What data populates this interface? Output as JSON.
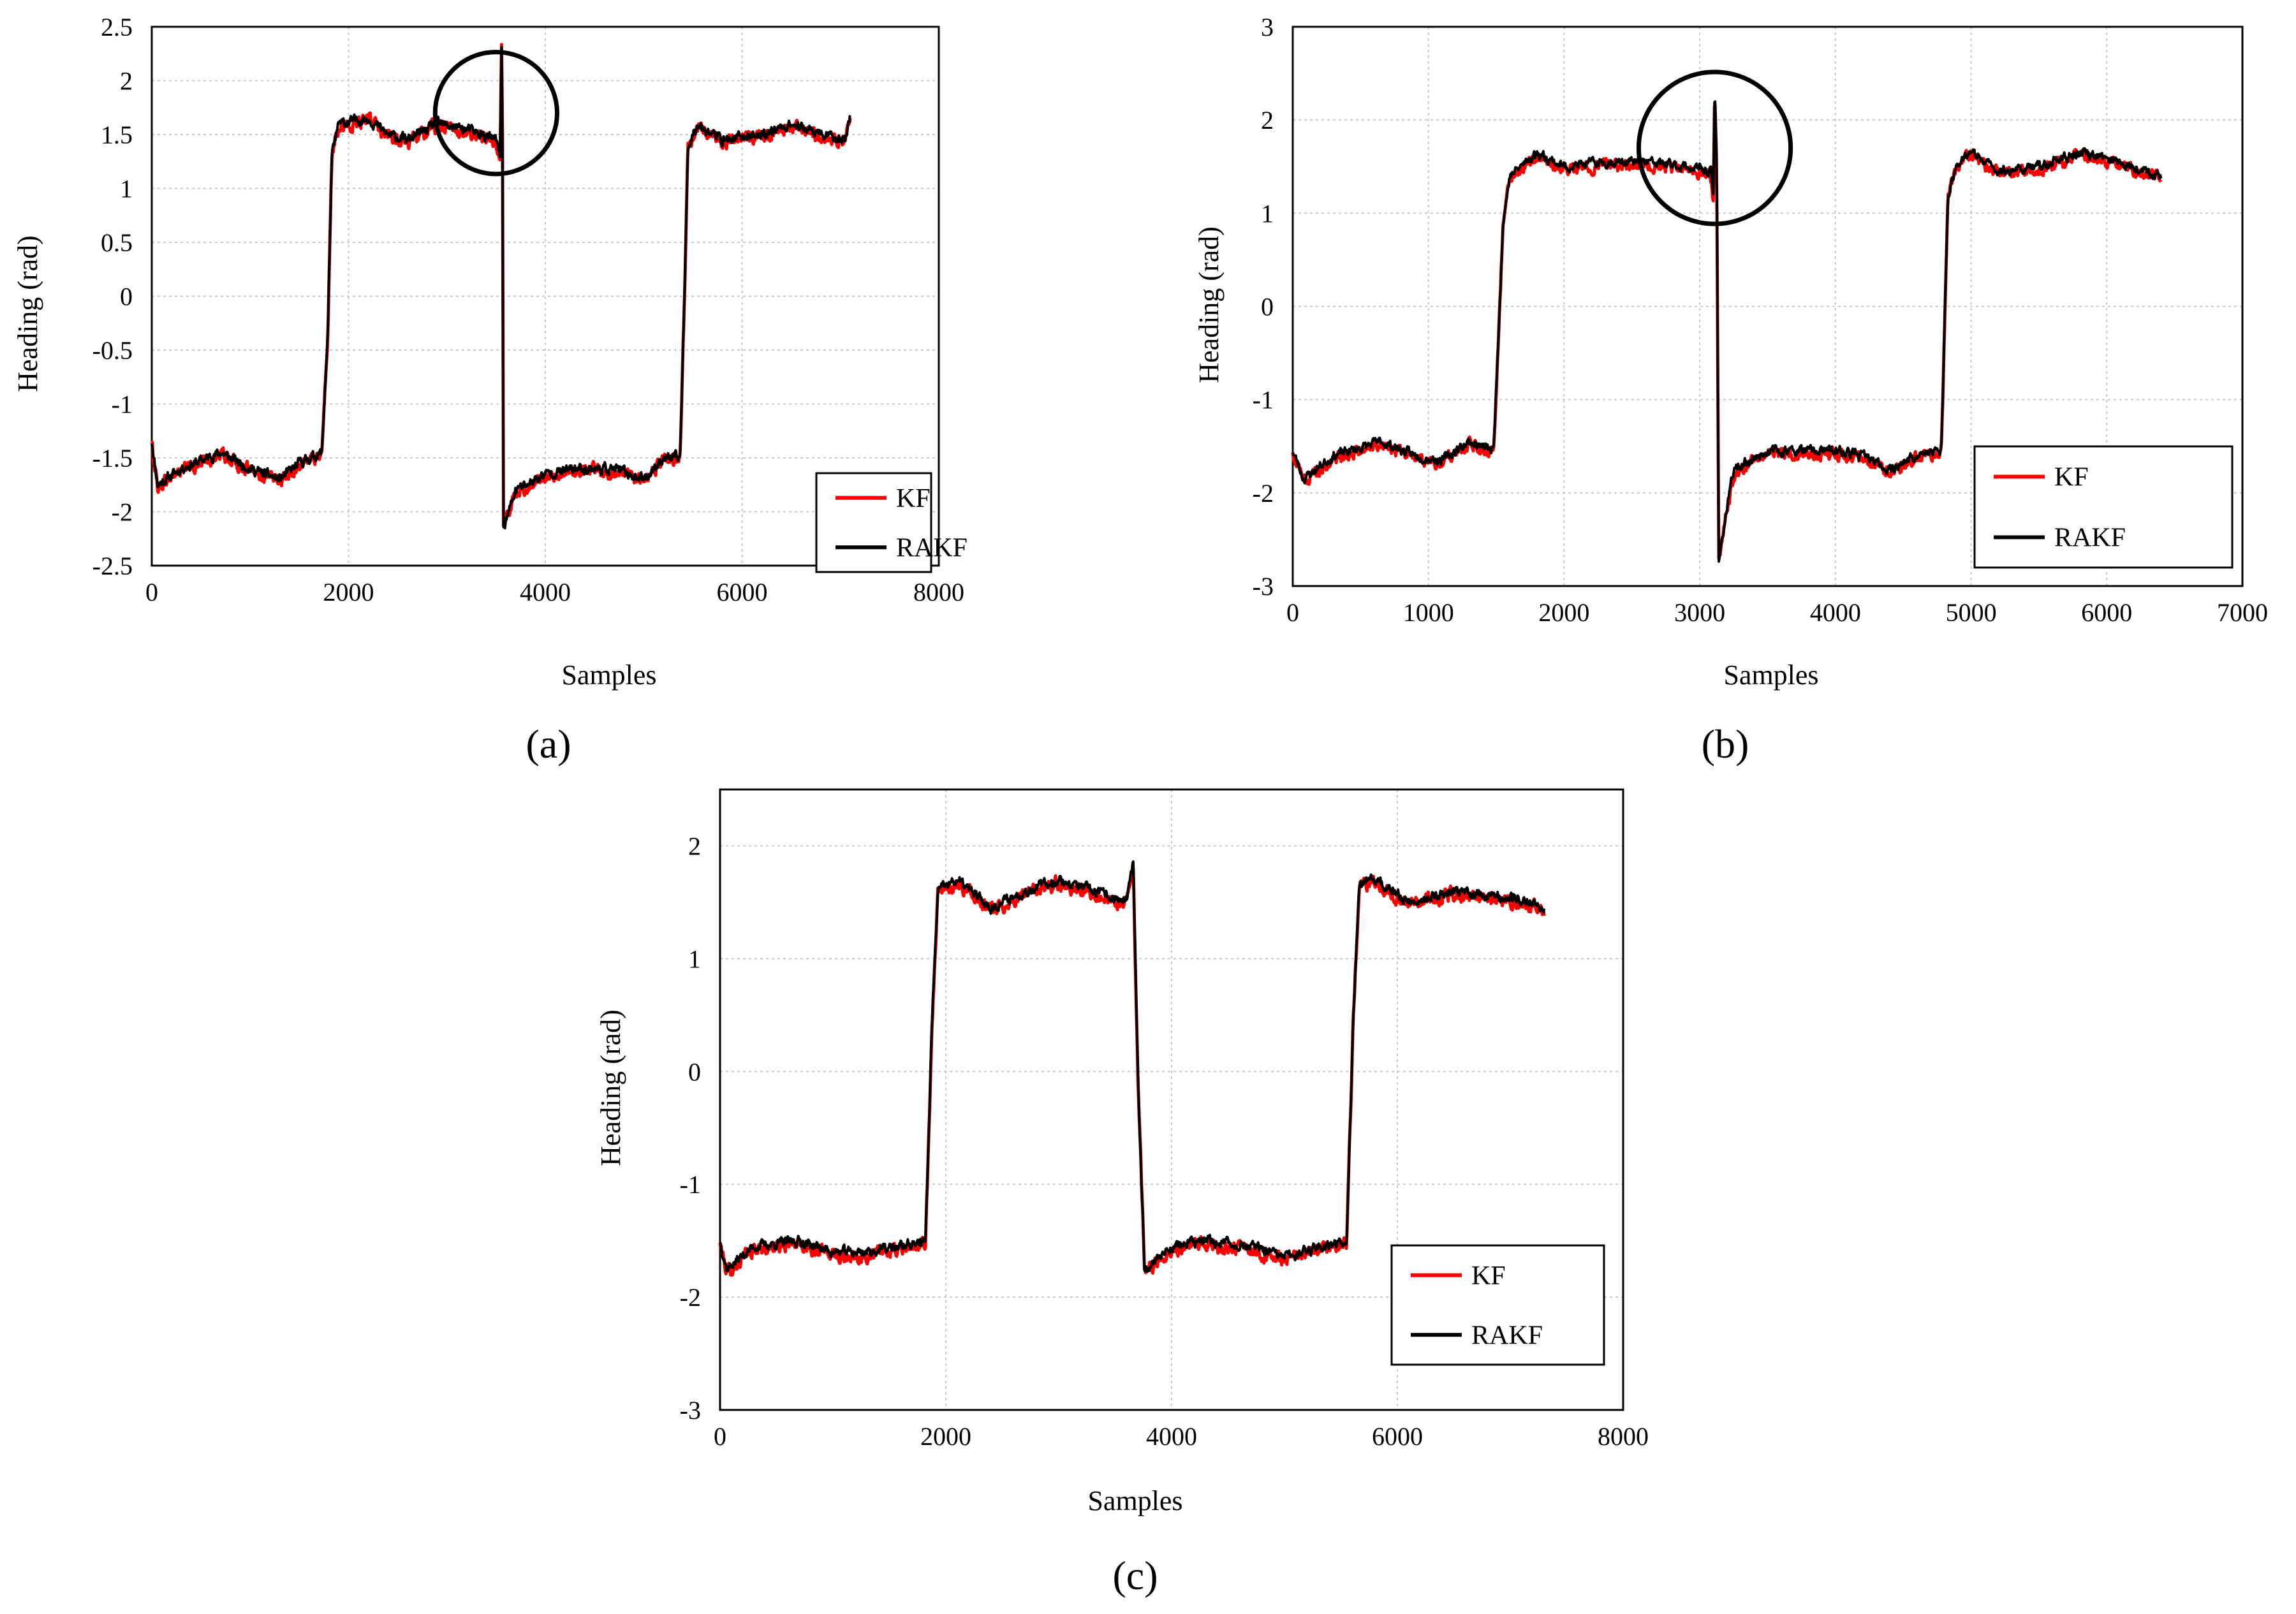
{
  "figure": {
    "panel_count": 3
  },
  "chart_data": [
    {
      "type": "line",
      "panel_label": "a",
      "panel_text": "(a)",
      "xlabel": "Samples",
      "ylabel": "Heading (rad)",
      "xlim": [
        0,
        8000
      ],
      "ylim": [
        -2.5,
        2.5
      ],
      "xticks": [
        0,
        2000,
        4000,
        6000,
        8000
      ],
      "xtick_labels": [
        "0",
        "2000",
        "4000",
        "6000",
        "8000"
      ],
      "yticks": [
        -2.5,
        -2,
        -1.5,
        -1,
        -0.5,
        0,
        0.5,
        1,
        1.5,
        2,
        2.5
      ],
      "ytick_labels": [
        "-2.5",
        "-2",
        "-1.5",
        "-1",
        "-0.5",
        "0",
        "0.5",
        "1",
        "1.5",
        "2",
        "2.5"
      ],
      "grid": true,
      "legend_position": "bottom-right",
      "series": [
        {
          "name": "KF",
          "color": "#ff0000",
          "seed": 11,
          "noise": 0.045,
          "offset": -0.02
        },
        {
          "name": "RAKF",
          "color": "#000000",
          "seed": 11,
          "noise": 0.035,
          "offset": 0.0
        }
      ],
      "trajectory": [
        [
          0,
          -1.35
        ],
        [
          60,
          -1.75
        ],
        [
          300,
          -1.6
        ],
        [
          700,
          -1.45
        ],
        [
          1000,
          -1.6
        ],
        [
          1300,
          -1.7
        ],
        [
          1500,
          -1.55
        ],
        [
          1730,
          -1.45
        ],
        [
          1790,
          -0.3
        ],
        [
          1830,
          1.3
        ],
        [
          1900,
          1.6
        ],
        [
          2200,
          1.65
        ],
        [
          2400,
          1.5
        ],
        [
          2600,
          1.45
        ],
        [
          2900,
          1.6
        ],
        [
          3200,
          1.55
        ],
        [
          3500,
          1.45
        ],
        [
          3540,
          1.3
        ],
        [
          3555,
          2.3
        ],
        [
          3565,
          1.5
        ],
        [
          3575,
          -2.15
        ],
        [
          3700,
          -1.8
        ],
        [
          4000,
          -1.65
        ],
        [
          4300,
          -1.6
        ],
        [
          4700,
          -1.6
        ],
        [
          5000,
          -1.7
        ],
        [
          5200,
          -1.5
        ],
        [
          5370,
          -1.5
        ],
        [
          5420,
          0.2
        ],
        [
          5450,
          1.4
        ],
        [
          5550,
          1.6
        ],
        [
          5800,
          1.45
        ],
        [
          6200,
          1.5
        ],
        [
          6500,
          1.6
        ],
        [
          6800,
          1.5
        ],
        [
          7050,
          1.45
        ],
        [
          7100,
          1.7
        ]
      ],
      "annotation": {
        "shape": "circle",
        "center": [
          3500,
          1.7
        ],
        "radius": 620
      }
    },
    {
      "type": "line",
      "panel_label": "b",
      "panel_text": "(b)",
      "xlabel": "Samples",
      "ylabel": "Heading (rad)",
      "xlim": [
        0,
        7000
      ],
      "ylim": [
        -3,
        3
      ],
      "xticks": [
        0,
        1000,
        2000,
        3000,
        4000,
        5000,
        6000,
        7000
      ],
      "xtick_labels": [
        "0",
        "1000",
        "2000",
        "3000",
        "4000",
        "5000",
        "6000",
        "7000"
      ],
      "yticks": [
        -3,
        -2,
        -1,
        0,
        1,
        2,
        3
      ],
      "ytick_labels": [
        "-3",
        "-2",
        "-1",
        "0",
        "1",
        "2",
        "3"
      ],
      "grid": true,
      "legend_position": "bottom-right",
      "series": [
        {
          "name": "KF",
          "color": "#ff0000",
          "seed": 23,
          "noise": 0.05,
          "offset": -0.03
        },
        {
          "name": "RAKF",
          "color": "#000000",
          "seed": 23,
          "noise": 0.04,
          "offset": 0.0
        }
      ],
      "trajectory": [
        [
          0,
          -1.55
        ],
        [
          80,
          -1.85
        ],
        [
          300,
          -1.6
        ],
        [
          650,
          -1.45
        ],
        [
          900,
          -1.6
        ],
        [
          1100,
          -1.65
        ],
        [
          1300,
          -1.45
        ],
        [
          1480,
          -1.55
        ],
        [
          1550,
          0.9
        ],
        [
          1600,
          1.4
        ],
        [
          1800,
          1.65
        ],
        [
          2000,
          1.5
        ],
        [
          2300,
          1.55
        ],
        [
          2600,
          1.55
        ],
        [
          2900,
          1.5
        ],
        [
          3080,
          1.45
        ],
        [
          3100,
          1.2
        ],
        [
          3110,
          2.35
        ],
        [
          3125,
          1.5
        ],
        [
          3140,
          -2.7
        ],
        [
          3250,
          -1.75
        ],
        [
          3500,
          -1.55
        ],
        [
          3800,
          -1.55
        ],
        [
          4000,
          -1.55
        ],
        [
          4200,
          -1.6
        ],
        [
          4400,
          -1.75
        ],
        [
          4600,
          -1.6
        ],
        [
          4780,
          -1.55
        ],
        [
          4830,
          1.2
        ],
        [
          4900,
          1.55
        ],
        [
          5000,
          1.65
        ],
        [
          5200,
          1.45
        ],
        [
          5500,
          1.5
        ],
        [
          5800,
          1.65
        ],
        [
          6100,
          1.55
        ],
        [
          6400,
          1.4
        ]
      ],
      "annotation": {
        "shape": "circle",
        "center": [
          3110,
          1.7
        ],
        "radius": 560
      }
    },
    {
      "type": "line",
      "panel_label": "c",
      "panel_text": "(c)",
      "xlabel": "Samples",
      "ylabel": "Heading (rad)",
      "xlim": [
        0,
        8000
      ],
      "ylim": [
        -3,
        2.5
      ],
      "xticks": [
        0,
        2000,
        4000,
        6000,
        8000
      ],
      "xtick_labels": [
        "0",
        "2000",
        "4000",
        "6000",
        "8000"
      ],
      "yticks": [
        -3,
        -2,
        -1,
        0,
        1,
        2
      ],
      "ytick_labels": [
        "-3",
        "-2",
        "-1",
        "0",
        "1",
        "2"
      ],
      "grid": true,
      "legend_position": "bottom-right",
      "series": [
        {
          "name": "KF",
          "color": "#ff0000",
          "seed": 37,
          "noise": 0.045,
          "offset": -0.03
        },
        {
          "name": "RAKF",
          "color": "#000000",
          "seed": 37,
          "noise": 0.035,
          "offset": 0.0
        }
      ],
      "trajectory": [
        [
          0,
          -1.5
        ],
        [
          60,
          -1.75
        ],
        [
          300,
          -1.55
        ],
        [
          700,
          -1.5
        ],
        [
          1000,
          -1.6
        ],
        [
          1300,
          -1.6
        ],
        [
          1600,
          -1.55
        ],
        [
          1820,
          -1.5
        ],
        [
          1880,
          0.5
        ],
        [
          1930,
          1.6
        ],
        [
          2100,
          1.7
        ],
        [
          2400,
          1.45
        ],
        [
          2700,
          1.6
        ],
        [
          3000,
          1.7
        ],
        [
          3300,
          1.6
        ],
        [
          3600,
          1.5
        ],
        [
          3660,
          1.85
        ],
        [
          3700,
          0.0
        ],
        [
          3760,
          -1.75
        ],
        [
          4000,
          -1.55
        ],
        [
          4300,
          -1.5
        ],
        [
          4700,
          -1.55
        ],
        [
          5000,
          -1.65
        ],
        [
          5300,
          -1.55
        ],
        [
          5550,
          -1.5
        ],
        [
          5610,
          0.5
        ],
        [
          5660,
          1.65
        ],
        [
          5800,
          1.7
        ],
        [
          6100,
          1.5
        ],
        [
          6500,
          1.6
        ],
        [
          6900,
          1.55
        ],
        [
          7200,
          1.5
        ],
        [
          7300,
          1.45
        ]
      ]
    }
  ]
}
